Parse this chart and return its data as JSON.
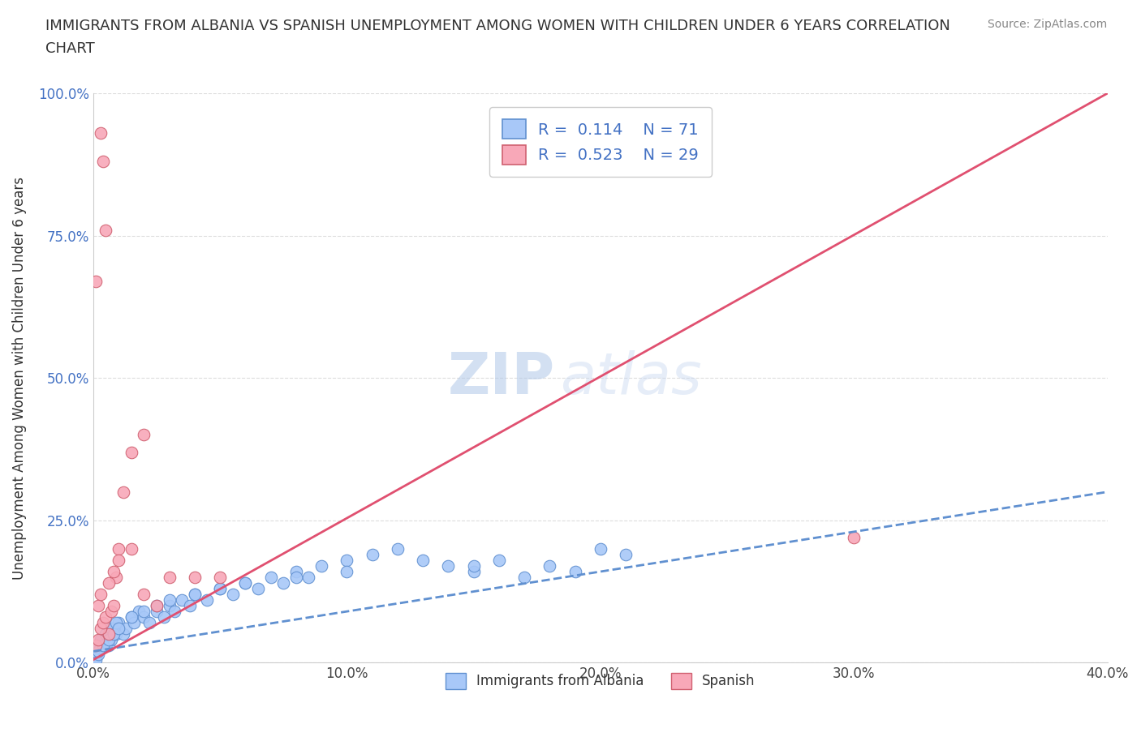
{
  "title_line1": "IMMIGRANTS FROM ALBANIA VS SPANISH UNEMPLOYMENT AMONG WOMEN WITH CHILDREN UNDER 6 YEARS CORRELATION",
  "title_line2": "CHART",
  "source": "Source: ZipAtlas.com",
  "ylabel": "Unemployment Among Women with Children Under 6 years",
  "xlim": [
    0,
    0.4
  ],
  "ylim": [
    0,
    1.0
  ],
  "xticks": [
    0.0,
    0.1,
    0.2,
    0.3,
    0.4
  ],
  "xticklabels": [
    "0.0%",
    "10.0%",
    "20.0%",
    "30.0%",
    "40.0%"
  ],
  "yticks": [
    0.0,
    0.25,
    0.5,
    0.75,
    1.0
  ],
  "yticklabels": [
    "0.0%",
    "25.0%",
    "50.0%",
    "75.0%",
    "100.0%"
  ],
  "blue_color": "#a8c8f8",
  "pink_color": "#f8a8b8",
  "blue_edge": "#6090d0",
  "pink_edge": "#d06070",
  "blue_line_color": "#6090d0",
  "pink_line_color": "#e05070",
  "legend_r1": "R =  0.114    N = 71",
  "legend_r2": "R =  0.523    N = 29",
  "legend_label1": "Immigrants from Albania",
  "legend_label2": "Spanish",
  "R_blue": 0.114,
  "N_blue": 71,
  "R_pink": 0.523,
  "N_pink": 29,
  "watermark_zip": "ZIP",
  "watermark_atlas": "atlas",
  "blue_scatter_x": [
    0.0,
    0.001,
    0.001,
    0.002,
    0.002,
    0.003,
    0.003,
    0.004,
    0.005,
    0.006,
    0.007,
    0.008,
    0.009,
    0.01,
    0.012,
    0.013,
    0.015,
    0.016,
    0.018,
    0.02,
    0.022,
    0.025,
    0.028,
    0.03,
    0.032,
    0.035,
    0.038,
    0.04,
    0.045,
    0.05,
    0.055,
    0.06,
    0.065,
    0.07,
    0.075,
    0.08,
    0.085,
    0.09,
    0.1,
    0.11,
    0.12,
    0.13,
    0.14,
    0.15,
    0.16,
    0.17,
    0.18,
    0.19,
    0.2,
    0.21,
    0.0,
    0.001,
    0.002,
    0.003,
    0.004,
    0.005,
    0.006,
    0.007,
    0.008,
    0.009,
    0.01,
    0.015,
    0.02,
    0.025,
    0.03,
    0.04,
    0.05,
    0.06,
    0.08,
    0.1,
    0.15
  ],
  "blue_scatter_y": [
    0.0,
    0.01,
    0.005,
    0.02,
    0.015,
    0.03,
    0.025,
    0.04,
    0.05,
    0.03,
    0.04,
    0.06,
    0.05,
    0.07,
    0.05,
    0.06,
    0.08,
    0.07,
    0.09,
    0.08,
    0.07,
    0.09,
    0.08,
    0.1,
    0.09,
    0.11,
    0.1,
    0.12,
    0.11,
    0.13,
    0.12,
    0.14,
    0.13,
    0.15,
    0.14,
    0.16,
    0.15,
    0.17,
    0.18,
    0.19,
    0.2,
    0.18,
    0.17,
    0.16,
    0.18,
    0.15,
    0.17,
    0.16,
    0.2,
    0.19,
    0.02,
    0.03,
    0.02,
    0.04,
    0.03,
    0.05,
    0.04,
    0.06,
    0.05,
    0.07,
    0.06,
    0.08,
    0.09,
    0.1,
    0.11,
    0.12,
    0.13,
    0.14,
    0.15,
    0.16,
    0.17
  ],
  "pink_scatter_x": [
    0.003,
    0.004,
    0.005,
    0.001,
    0.002,
    0.006,
    0.003,
    0.004,
    0.005,
    0.007,
    0.008,
    0.009,
    0.01,
    0.012,
    0.015,
    0.02,
    0.025,
    0.03,
    0.04,
    0.05,
    0.001,
    0.002,
    0.003,
    0.006,
    0.008,
    0.01,
    0.015,
    0.02,
    0.3
  ],
  "pink_scatter_y": [
    0.93,
    0.88,
    0.76,
    0.03,
    0.04,
    0.05,
    0.06,
    0.07,
    0.08,
    0.09,
    0.1,
    0.15,
    0.2,
    0.3,
    0.37,
    0.4,
    0.1,
    0.15,
    0.15,
    0.15,
    0.67,
    0.1,
    0.12,
    0.14,
    0.16,
    0.18,
    0.2,
    0.12,
    0.22
  ],
  "blue_trend_x": [
    0.0,
    0.4
  ],
  "blue_trend_y": [
    0.02,
    0.3
  ],
  "pink_trend_x": [
    0.0,
    0.4
  ],
  "pink_trend_y": [
    0.005,
    1.0
  ]
}
